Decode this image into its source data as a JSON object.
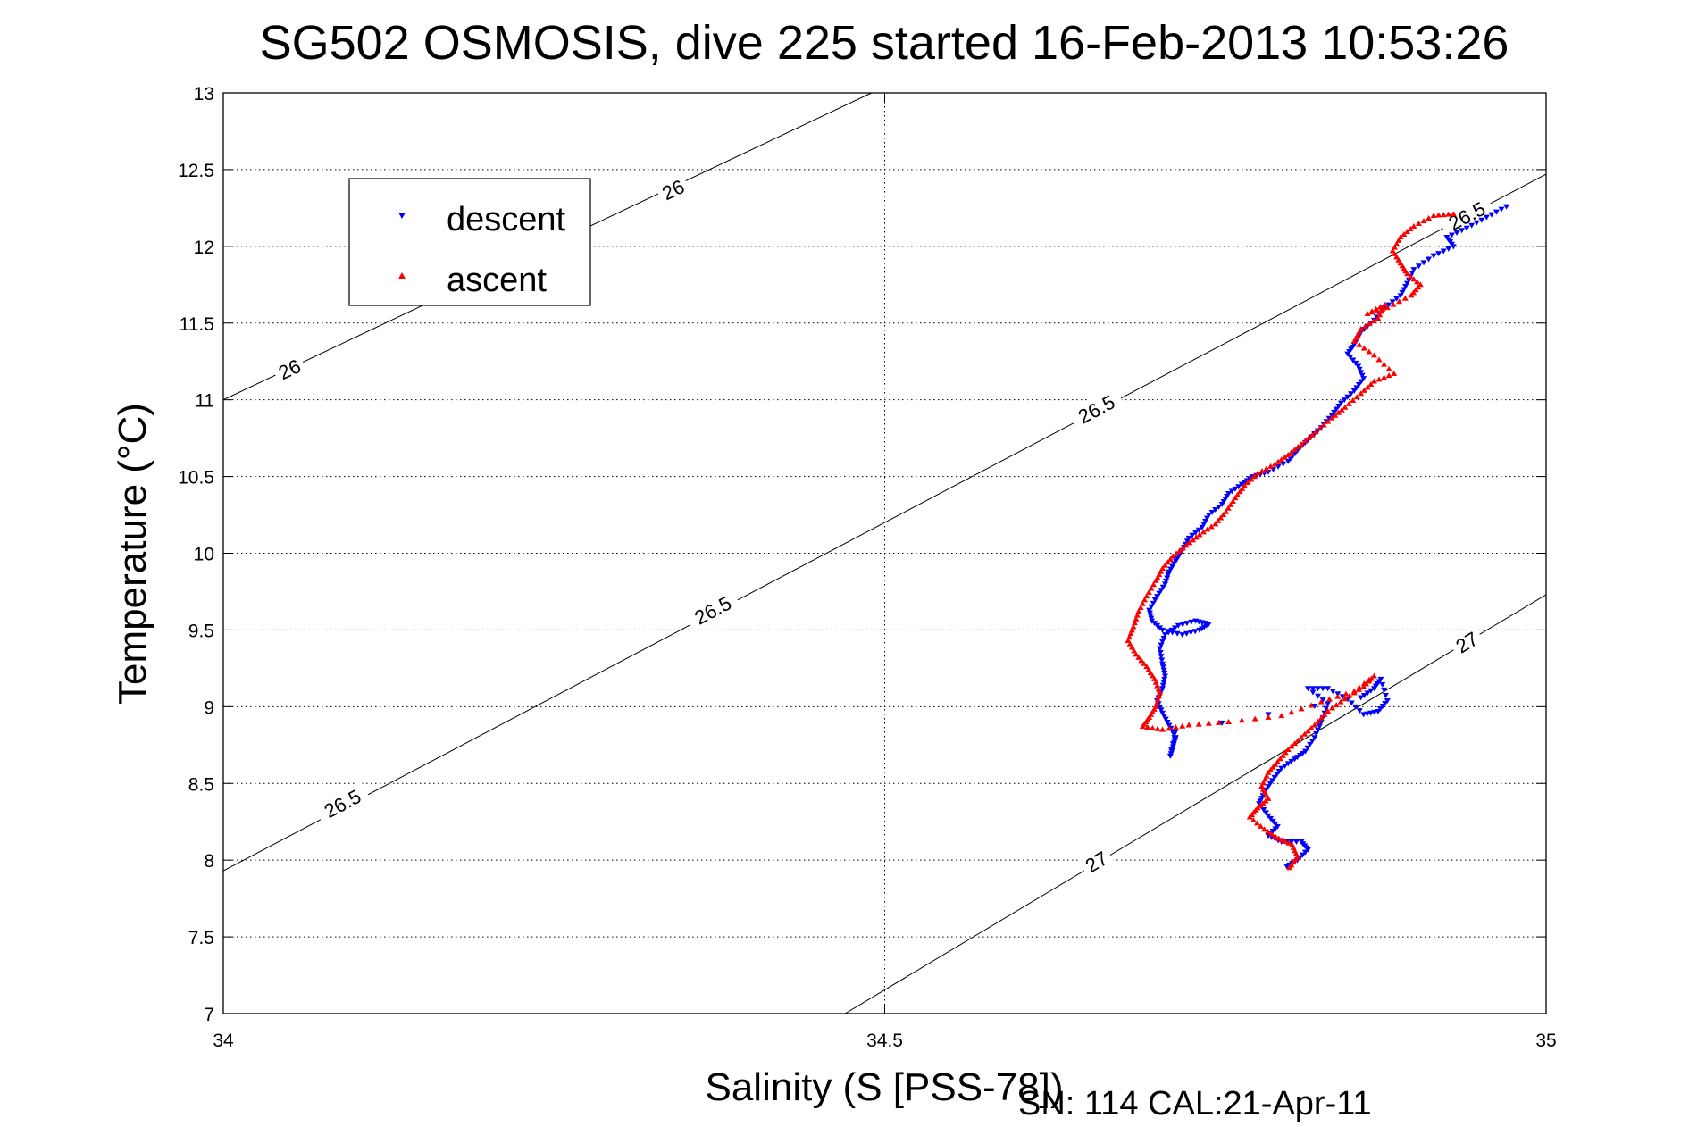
{
  "chart_data": {
    "type": "scatter",
    "title": "SG502 OSMOSIS, dive 225 started 16-Feb-2013 10:53:26",
    "xlabel": "Salinity (S [PSS-78])",
    "ylabel": "Temperature (°C)",
    "xlim": [
      34,
      35
    ],
    "ylim": [
      7,
      13
    ],
    "xticks": [
      34,
      34.5,
      35
    ],
    "xtick_labels": [
      "34",
      "34.5",
      "35"
    ],
    "yticks": [
      7,
      7.5,
      8,
      8.5,
      9,
      9.5,
      10,
      10.5,
      11,
      11.5,
      12,
      12.5,
      13
    ],
    "ytick_labels": [
      "7",
      "7.5",
      "8",
      "8.5",
      "9",
      "9.5",
      "10",
      "10.5",
      "11",
      "11.5",
      "12",
      "12.5",
      "13"
    ],
    "grid": true,
    "legend_position": "top-left",
    "footer": "SN: 114  CAL:21-Apr-11",
    "isopycnals": [
      {
        "label": "26",
        "points": [
          [
            34.0,
            11.0
          ],
          [
            34.49,
            13.0
          ]
        ],
        "labels": [
          {
            "text": "26",
            "x": 34.05,
            "y": 11.2
          },
          {
            "text": "26",
            "x": 34.34,
            "y": 12.37
          }
        ]
      },
      {
        "label": "26.5",
        "points": [
          [
            34.0,
            7.93
          ],
          [
            35.0,
            12.47
          ]
        ],
        "labels": [
          {
            "text": "26.5",
            "x": 34.09,
            "y": 8.37
          },
          {
            "text": "26.5",
            "x": 34.37,
            "y": 9.63
          },
          {
            "text": "26.5",
            "x": 34.66,
            "y": 10.94
          },
          {
            "text": "26.5",
            "x": 34.94,
            "y": 12.2
          }
        ]
      },
      {
        "label": "27",
        "points": [
          [
            34.47,
            7.0
          ],
          [
            35.0,
            9.73
          ]
        ],
        "labels": [
          {
            "text": "27",
            "x": 34.66,
            "y": 7.99
          },
          {
            "text": "27",
            "x": 34.94,
            "y": 9.42
          }
        ]
      }
    ],
    "series": [
      {
        "name": "descent",
        "color": "#0000ff",
        "marker": "triangle-down",
        "points": [
          [
            34.97,
            12.26
          ],
          [
            34.955,
            12.19
          ],
          [
            34.94,
            12.12
          ],
          [
            34.925,
            12.06
          ],
          [
            34.93,
            12.0
          ],
          [
            34.915,
            11.94
          ],
          [
            34.9,
            11.85
          ],
          [
            34.895,
            11.76
          ],
          [
            34.89,
            11.68
          ],
          [
            34.878,
            11.6
          ],
          [
            34.87,
            11.52
          ],
          [
            34.86,
            11.44
          ],
          [
            34.855,
            11.36
          ],
          [
            34.85,
            11.3
          ],
          [
            34.858,
            11.22
          ],
          [
            34.862,
            11.14
          ],
          [
            34.855,
            11.06
          ],
          [
            34.845,
            10.98
          ],
          [
            34.838,
            10.9
          ],
          [
            34.83,
            10.82
          ],
          [
            34.82,
            10.74
          ],
          [
            34.812,
            10.67
          ],
          [
            34.805,
            10.6
          ],
          [
            34.79,
            10.53
          ],
          [
            34.778,
            10.5
          ],
          [
            34.77,
            10.45
          ],
          [
            34.76,
            10.39
          ],
          [
            34.755,
            10.32
          ],
          [
            34.745,
            10.25
          ],
          [
            34.74,
            10.17
          ],
          [
            34.73,
            10.1
          ],
          [
            34.725,
            10.02
          ],
          [
            34.72,
            9.95
          ],
          [
            34.715,
            9.88
          ],
          [
            34.712,
            9.8
          ],
          [
            34.706,
            9.72
          ],
          [
            34.7,
            9.63
          ],
          [
            34.702,
            9.56
          ],
          [
            34.71,
            9.5
          ],
          [
            34.725,
            9.47
          ],
          [
            34.738,
            9.5
          ],
          [
            34.745,
            9.54
          ],
          [
            34.735,
            9.56
          ],
          [
            34.722,
            9.53
          ],
          [
            34.712,
            9.47
          ],
          [
            34.708,
            9.38
          ],
          [
            34.71,
            9.28
          ],
          [
            34.712,
            9.2
          ],
          [
            34.71,
            9.12
          ],
          [
            34.706,
            9.04
          ],
          [
            34.71,
            8.96
          ],
          [
            34.715,
            8.88
          ],
          [
            34.72,
            8.8
          ],
          [
            34.718,
            8.74
          ],
          [
            34.716,
            8.68
          ],
          [
            34.72,
            8.84
          ],
          [
            34.86,
            9.06
          ],
          [
            34.87,
            9.12
          ],
          [
            34.875,
            9.18
          ],
          [
            34.88,
            9.04
          ],
          [
            34.873,
            8.97
          ],
          [
            34.862,
            8.95
          ],
          [
            34.85,
            9.05
          ],
          [
            34.835,
            9.12
          ],
          [
            34.82,
            9.12
          ],
          [
            34.835,
            9.02
          ],
          [
            34.83,
            8.9
          ],
          [
            34.825,
            8.8
          ],
          [
            34.818,
            8.71
          ],
          [
            34.81,
            8.66
          ],
          [
            34.8,
            8.6
          ],
          [
            34.793,
            8.52
          ],
          [
            34.787,
            8.44
          ],
          [
            34.783,
            8.37
          ],
          [
            34.79,
            8.29
          ],
          [
            34.797,
            8.22
          ],
          [
            34.79,
            8.16
          ],
          [
            34.8,
            8.12
          ],
          [
            34.815,
            8.12
          ],
          [
            34.82,
            8.07
          ],
          [
            34.812,
            8.0
          ],
          [
            34.804,
            7.96
          ]
        ]
      },
      {
        "name": "ascent",
        "color": "#ff0000",
        "marker": "triangle-up",
        "points": [
          [
            34.93,
            12.21
          ],
          [
            34.915,
            12.2
          ],
          [
            34.9,
            12.13
          ],
          [
            34.89,
            12.06
          ],
          [
            34.884,
            11.97
          ],
          [
            34.89,
            11.89
          ],
          [
            34.895,
            11.82
          ],
          [
            34.905,
            11.75
          ],
          [
            34.898,
            11.68
          ],
          [
            34.88,
            11.6
          ],
          [
            34.865,
            11.56
          ],
          [
            34.878,
            11.62
          ],
          [
            34.873,
            11.53
          ],
          [
            34.86,
            11.46
          ],
          [
            34.855,
            11.38
          ],
          [
            34.87,
            11.29
          ],
          [
            34.885,
            11.17
          ],
          [
            34.87,
            11.12
          ],
          [
            34.86,
            11.04
          ],
          [
            34.848,
            10.95
          ],
          [
            34.838,
            10.88
          ],
          [
            34.826,
            10.79
          ],
          [
            34.815,
            10.71
          ],
          [
            34.805,
            10.64
          ],
          [
            34.795,
            10.58
          ],
          [
            34.782,
            10.52
          ],
          [
            34.772,
            10.44
          ],
          [
            34.765,
            10.36
          ],
          [
            34.758,
            10.27
          ],
          [
            34.75,
            10.19
          ],
          [
            34.738,
            10.12
          ],
          [
            34.728,
            10.05
          ],
          [
            34.718,
            9.98
          ],
          [
            34.71,
            9.9
          ],
          [
            34.705,
            9.82
          ],
          [
            34.698,
            9.72
          ],
          [
            34.692,
            9.62
          ],
          [
            34.688,
            9.52
          ],
          [
            34.684,
            9.43
          ],
          [
            34.69,
            9.34
          ],
          [
            34.698,
            9.26
          ],
          [
            34.704,
            9.18
          ],
          [
            34.708,
            9.09
          ],
          [
            34.705,
            9.0
          ],
          [
            34.7,
            8.93
          ],
          [
            34.695,
            8.87
          ],
          [
            34.71,
            8.85
          ],
          [
            34.73,
            8.88
          ],
          [
            34.76,
            8.9
          ],
          [
            34.8,
            8.94
          ],
          [
            34.83,
            9.03
          ],
          [
            34.855,
            9.1
          ],
          [
            34.87,
            9.2
          ],
          [
            34.862,
            9.13
          ],
          [
            34.848,
            9.05
          ],
          [
            34.835,
            8.97
          ],
          [
            34.825,
            8.88
          ],
          [
            34.815,
            8.8
          ],
          [
            34.805,
            8.72
          ],
          [
            34.797,
            8.64
          ],
          [
            34.79,
            8.57
          ],
          [
            34.785,
            8.48
          ],
          [
            34.79,
            8.4
          ],
          [
            34.782,
            8.34
          ],
          [
            34.776,
            8.28
          ],
          [
            34.787,
            8.2
          ],
          [
            34.798,
            8.14
          ],
          [
            34.808,
            8.1
          ],
          [
            34.812,
            8.02
          ],
          [
            34.806,
            7.95
          ]
        ]
      }
    ]
  }
}
